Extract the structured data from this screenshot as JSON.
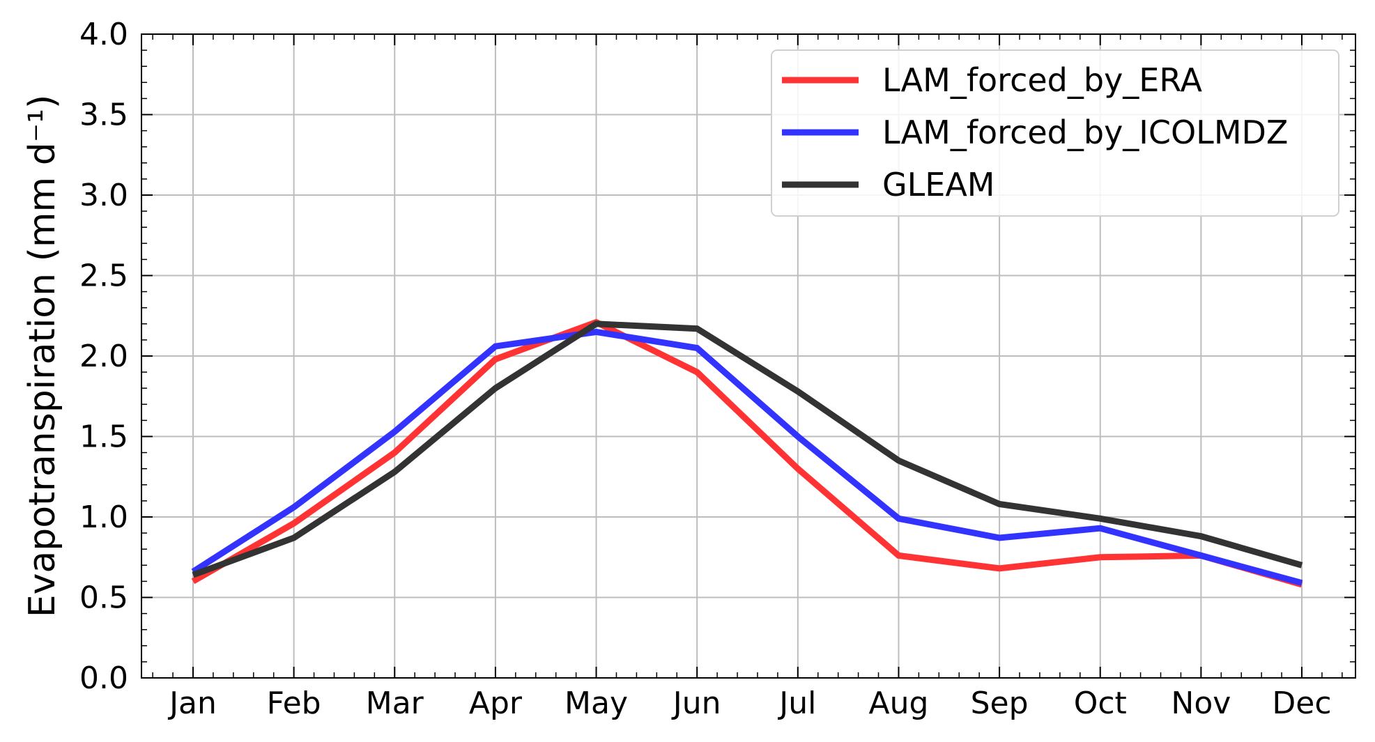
{
  "chart_data": {
    "type": "line",
    "ylabel": "Evapotranspiration (mm d⁻¹)",
    "xlabel": "",
    "categories": [
      "Jan",
      "Feb",
      "Mar",
      "Apr",
      "May",
      "Jun",
      "Jul",
      "Aug",
      "Sep",
      "Oct",
      "Nov",
      "Dec"
    ],
    "ylim": [
      0.0,
      4.0
    ],
    "yticks": [
      "0.0",
      "0.5",
      "1.0",
      "1.5",
      "2.0",
      "2.5",
      "3.0",
      "3.5",
      "4.0"
    ],
    "grid": true,
    "legend_position": "top-right",
    "series": [
      {
        "name": "LAM_forced_by_ERA",
        "color": "#ff3333",
        "values": [
          0.6,
          0.96,
          1.4,
          1.98,
          2.21,
          1.9,
          1.3,
          0.76,
          0.68,
          0.75,
          0.76,
          0.58
        ]
      },
      {
        "name": "LAM_forced_by_ICOLMDZ",
        "color": "#3333ff",
        "values": [
          0.66,
          1.06,
          1.53,
          2.06,
          2.15,
          2.05,
          1.5,
          0.99,
          0.87,
          0.93,
          0.76,
          0.59
        ]
      },
      {
        "name": "GLEAM",
        "color": "#333333",
        "values": [
          0.64,
          0.87,
          1.28,
          1.8,
          2.2,
          2.17,
          1.78,
          1.35,
          1.08,
          0.99,
          0.88,
          0.7
        ]
      }
    ]
  }
}
